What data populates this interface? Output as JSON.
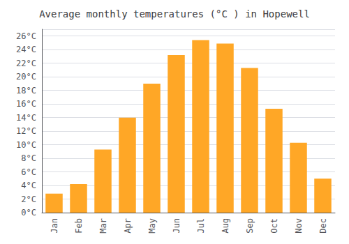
{
  "chart_data": {
    "type": "bar",
    "title": "Average monthly temperatures (°C ) in Hopewell",
    "categories": [
      "Jan",
      "Feb",
      "Mar",
      "Apr",
      "May",
      "Jun",
      "Jul",
      "Aug",
      "Sep",
      "Oct",
      "Nov",
      "Dec"
    ],
    "values": [
      2.8,
      4.2,
      9.3,
      14.0,
      19.0,
      23.2,
      25.4,
      24.9,
      21.3,
      15.3,
      10.3,
      5.0
    ],
    "color": "#FFA726",
    "ylim": [
      0,
      27
    ],
    "yticks": [
      {
        "value": 0,
        "label": "0°C"
      },
      {
        "value": 2,
        "label": "2°C"
      },
      {
        "value": 4,
        "label": "4°C"
      },
      {
        "value": 6,
        "label": "6°C"
      },
      {
        "value": 8,
        "label": "8°C"
      },
      {
        "value": 10,
        "label": "10°C"
      },
      {
        "value": 12,
        "label": "12°C"
      },
      {
        "value": 14,
        "label": "14°C"
      },
      {
        "value": 16,
        "label": "16°C"
      },
      {
        "value": 18,
        "label": "18°C"
      },
      {
        "value": 20,
        "label": "20°C"
      },
      {
        "value": 22,
        "label": "22°C"
      },
      {
        "value": 24,
        "label": "24°C"
      },
      {
        "value": 26,
        "label": "26°C"
      }
    ],
    "grid": true
  }
}
